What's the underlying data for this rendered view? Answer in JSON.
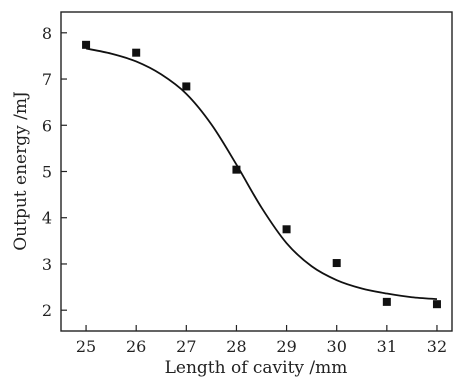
{
  "chart_data": {
    "type": "scatter",
    "xlabel": "Length of cavity /mm",
    "ylabel": "Output energy /mJ",
    "xlim": [
      24.5,
      32.3
    ],
    "ylim": [
      1.55,
      8.45
    ],
    "xticks": [
      25,
      26,
      27,
      28,
      29,
      30,
      31,
      32
    ],
    "yticks": [
      2,
      3,
      4,
      5,
      6,
      7,
      8
    ],
    "grid": false,
    "series": [
      {
        "kind": "points",
        "marker": "square",
        "color": "#111111",
        "x": [
          25,
          26,
          27,
          28,
          29,
          30,
          31,
          32
        ],
        "y": [
          7.74,
          7.57,
          6.84,
          5.04,
          3.75,
          3.02,
          2.18,
          2.13
        ]
      },
      {
        "kind": "fit-line",
        "color": "#111111",
        "x": [
          25,
          25.5,
          26,
          26.5,
          27,
          27.5,
          28,
          28.5,
          29,
          29.5,
          30,
          30.5,
          31,
          31.5,
          32
        ],
        "y": [
          7.66,
          7.55,
          7.38,
          7.1,
          6.68,
          6.02,
          5.15,
          4.22,
          3.45,
          2.95,
          2.65,
          2.47,
          2.36,
          2.28,
          2.24
        ]
      }
    ]
  }
}
